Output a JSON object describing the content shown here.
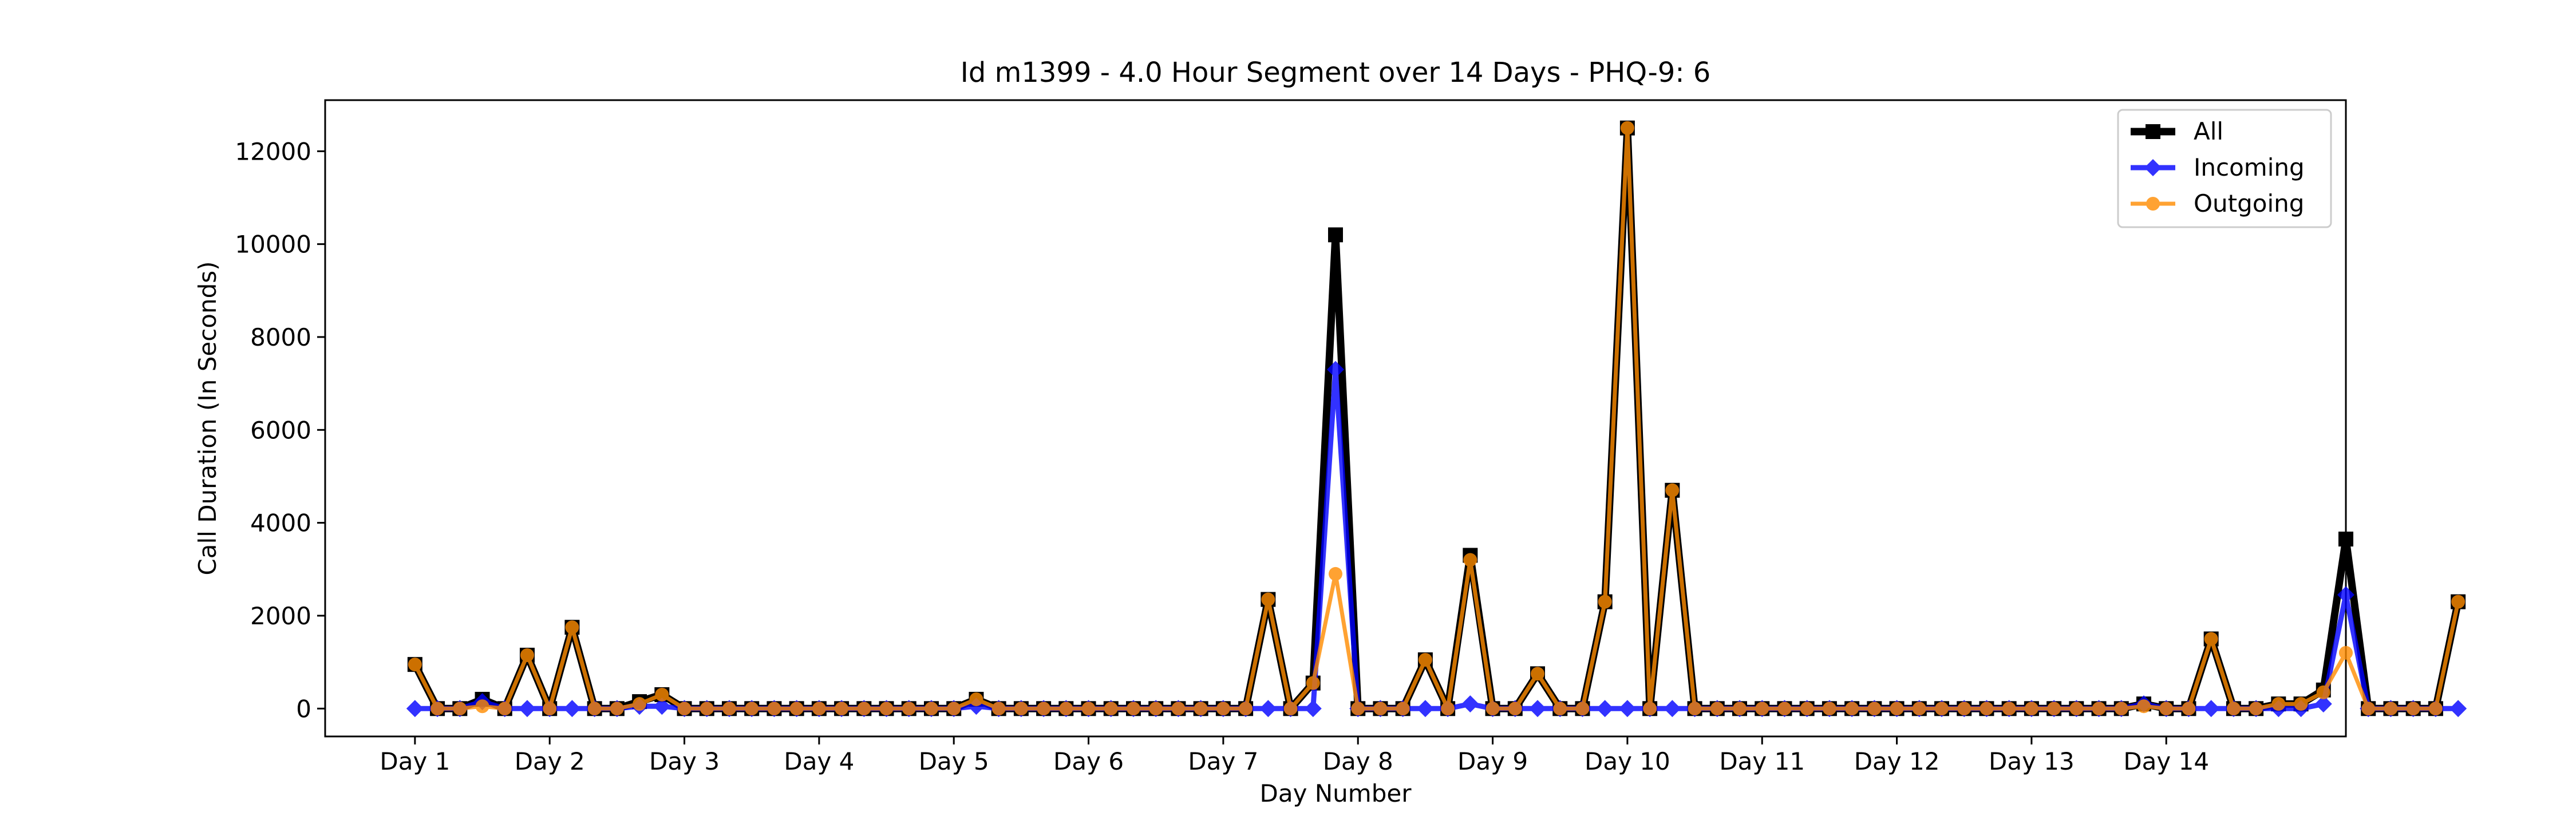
{
  "chart_data": {
    "type": "line",
    "title": "Id m1399 - 4.0 Hour Segment over 14 Days - PHQ-9: 6",
    "xlabel": "Day Number",
    "ylabel": "Call Duration (In Seconds)",
    "x_tick_labels": [
      "Day 1",
      "Day 2",
      "Day 3",
      "Day 4",
      "Day 5",
      "Day 6",
      "Day 7",
      "Day 8",
      "Day 9",
      "Day 10",
      "Day 11",
      "Day 12",
      "Day 13",
      "Day 14"
    ],
    "y_ticks": [
      0,
      2000,
      4000,
      6000,
      8000,
      10000,
      12000
    ],
    "xlim": [
      -4,
      86
    ],
    "ylim": [
      -600,
      13100
    ],
    "grid": false,
    "legend_position": "top-right",
    "x_unit_note": "points are 4-hour segments; 6 segments per day; tick 'Day N' at segment 6*(N-1)",
    "series": [
      {
        "name": "All",
        "color": "#000000",
        "marker": "square",
        "values": [
          950,
          0,
          0,
          200,
          0,
          1150,
          0,
          1750,
          0,
          0,
          150,
          300,
          0,
          0,
          0,
          0,
          0,
          0,
          0,
          0,
          0,
          0,
          0,
          0,
          0,
          200,
          0,
          0,
          0,
          0,
          0,
          0,
          0,
          0,
          0,
          0,
          0,
          0,
          2350,
          0,
          550,
          10200,
          0,
          0,
          0,
          1050,
          0,
          3300,
          0,
          0,
          750,
          0,
          0,
          2300,
          12500,
          0,
          4700,
          0,
          0,
          0,
          0,
          0,
          0,
          0,
          0,
          0,
          0,
          0,
          0,
          0,
          0,
          0,
          0,
          0,
          0,
          0,
          0,
          100,
          0,
          0,
          1500,
          0,
          0,
          100,
          100,
          400,
          3650,
          0,
          0,
          0,
          0,
          2300
        ]
      },
      {
        "name": "Incoming",
        "color": "#0000ff",
        "marker": "diamond",
        "values": [
          0,
          0,
          0,
          150,
          0,
          0,
          0,
          0,
          0,
          0,
          50,
          50,
          0,
          0,
          0,
          0,
          0,
          0,
          0,
          0,
          0,
          0,
          0,
          0,
          0,
          50,
          0,
          0,
          0,
          0,
          0,
          0,
          0,
          0,
          0,
          0,
          0,
          0,
          0,
          0,
          0,
          7300,
          0,
          0,
          0,
          0,
          0,
          100,
          0,
          0,
          0,
          0,
          0,
          0,
          0,
          0,
          0,
          0,
          0,
          0,
          0,
          0,
          0,
          0,
          0,
          0,
          0,
          0,
          0,
          0,
          0,
          0,
          0,
          0,
          0,
          0,
          0,
          100,
          0,
          0,
          0,
          0,
          0,
          0,
          0,
          100,
          2450,
          0,
          0,
          0,
          0,
          0
        ]
      },
      {
        "name": "Outgoing",
        "color": "#ff8c00",
        "marker": "circle",
        "values": [
          950,
          0,
          0,
          50,
          0,
          1150,
          0,
          1750,
          0,
          0,
          100,
          300,
          0,
          0,
          0,
          0,
          0,
          0,
          0,
          0,
          0,
          0,
          0,
          0,
          0,
          200,
          0,
          0,
          0,
          0,
          0,
          0,
          0,
          0,
          0,
          0,
          0,
          0,
          2350,
          0,
          550,
          2900,
          0,
          0,
          0,
          1050,
          0,
          3200,
          0,
          0,
          750,
          0,
          0,
          2300,
          12500,
          0,
          4700,
          0,
          0,
          0,
          0,
          0,
          0,
          0,
          0,
          0,
          0,
          0,
          0,
          0,
          0,
          0,
          0,
          0,
          0,
          0,
          0,
          50,
          0,
          0,
          1500,
          0,
          0,
          100,
          100,
          350,
          1200,
          0,
          0,
          0,
          0,
          2300
        ]
      }
    ]
  }
}
